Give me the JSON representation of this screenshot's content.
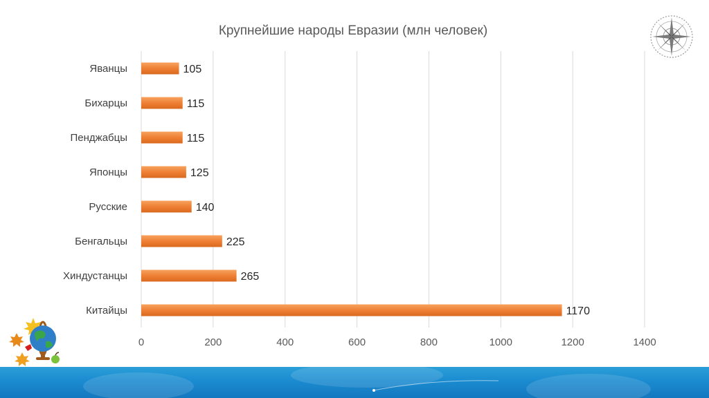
{
  "chart_data": {
    "type": "bar",
    "orientation": "horizontal",
    "title": "Крупнейшие народы Евразии (млн человек)",
    "categories": [
      "Яванцы",
      "Бихарцы",
      "Пенджабцы",
      "Японцы",
      "Русские",
      "Бенгальцы",
      "Хиндустанцы",
      "Китайцы"
    ],
    "values": [
      105,
      115,
      115,
      125,
      140,
      225,
      265,
      1170
    ],
    "xlim": [
      0,
      1400
    ],
    "xticks": [
      0,
      200,
      400,
      600,
      800,
      1000,
      1200,
      1400
    ],
    "grid": "vertical",
    "data_labels": true,
    "bar_color": "#ed7d31"
  },
  "icons": {
    "top_right": "compass-rose-icon",
    "bottom_left": "globe-with-maple-leaves-icon"
  },
  "colors": {
    "bar": "#ed7d31",
    "footer": "#1b8bd0",
    "gridline": "#d9d9d9"
  }
}
